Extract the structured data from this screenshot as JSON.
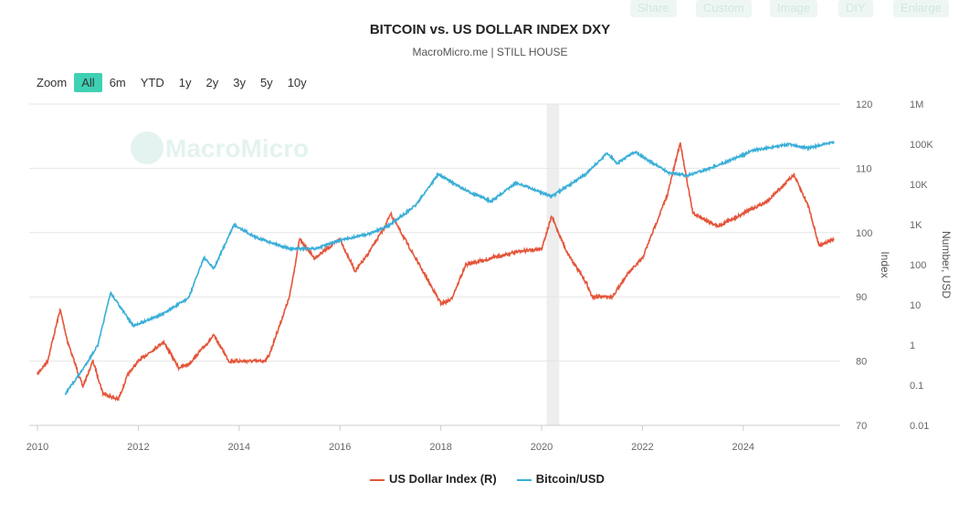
{
  "toolbar": [
    "Share",
    "Custom",
    "Image",
    "DIY",
    "Enlarge"
  ],
  "zoom": {
    "label": "Zoom",
    "options": [
      "All",
      "6m",
      "YTD",
      "1y",
      "2y",
      "3y",
      "5y",
      "10y"
    ],
    "selected": "All"
  },
  "watermark": "MacroMicro",
  "chart_data": {
    "type": "line",
    "title": "BITCOIN vs. US DOLLAR INDEX DXY",
    "subtitle": "MacroMicro.me | STILL HOUSE",
    "x_ticks": [
      "2010",
      "2012",
      "2014",
      "2016",
      "2018",
      "2020",
      "2022",
      "2024"
    ],
    "xlim": [
      2009.85,
      2025.85
    ],
    "y_left": {
      "label": "Index",
      "ticks": [
        "70",
        "80",
        "90",
        "100",
        "110",
        "120"
      ],
      "range": [
        70,
        120
      ]
    },
    "y_right": {
      "label": "Number, USD",
      "scale": "log",
      "ticks": [
        "0.01",
        "0.1",
        "1",
        "10",
        "100",
        "1K",
        "10K",
        "100K",
        "1M"
      ],
      "range": [
        0.01,
        1000000
      ]
    },
    "shaded_region": [
      2020.1,
      2020.35
    ],
    "legend": "bottom-center",
    "series": [
      {
        "name": "US Dollar Index (R)",
        "color": "#e4553a",
        "axis": "left",
        "points": [
          [
            2010.0,
            78
          ],
          [
            2010.2,
            80
          ],
          [
            2010.45,
            88
          ],
          [
            2010.6,
            83
          ],
          [
            2010.9,
            76
          ],
          [
            2011.1,
            80
          ],
          [
            2011.3,
            75
          ],
          [
            2011.6,
            74
          ],
          [
            2011.8,
            78
          ],
          [
            2012.0,
            80
          ],
          [
            2012.5,
            83
          ],
          [
            2012.8,
            79
          ],
          [
            2013.0,
            79.5
          ],
          [
            2013.5,
            84
          ],
          [
            2013.8,
            80
          ],
          [
            2014.0,
            80
          ],
          [
            2014.5,
            80
          ],
          [
            2014.6,
            81
          ],
          [
            2015.0,
            90
          ],
          [
            2015.2,
            99
          ],
          [
            2015.5,
            96
          ],
          [
            2016.0,
            99
          ],
          [
            2016.3,
            94
          ],
          [
            2016.5,
            96
          ],
          [
            2016.9,
            101
          ],
          [
            2017.0,
            103
          ],
          [
            2017.5,
            96
          ],
          [
            2018.0,
            89
          ],
          [
            2018.2,
            89.5
          ],
          [
            2018.5,
            95
          ],
          [
            2019.0,
            96
          ],
          [
            2019.5,
            97
          ],
          [
            2020.0,
            97.5
          ],
          [
            2020.2,
            102.5
          ],
          [
            2020.5,
            97
          ],
          [
            2020.9,
            92
          ],
          [
            2021.0,
            90
          ],
          [
            2021.4,
            90
          ],
          [
            2021.7,
            93.5
          ],
          [
            2022.0,
            96
          ],
          [
            2022.5,
            106
          ],
          [
            2022.75,
            114
          ],
          [
            2023.0,
            103
          ],
          [
            2023.5,
            101
          ],
          [
            2024.0,
            103
          ],
          [
            2024.5,
            105
          ],
          [
            2025.0,
            109
          ],
          [
            2025.3,
            104
          ],
          [
            2025.5,
            98
          ],
          [
            2025.8,
            99
          ]
        ]
      },
      {
        "name": "Bitcoin/USD",
        "color": "#3aaed8",
        "axis": "right",
        "points": [
          [
            2010.55,
            0.06
          ],
          [
            2010.9,
            0.25
          ],
          [
            2011.2,
            1
          ],
          [
            2011.45,
            20
          ],
          [
            2011.9,
            3
          ],
          [
            2012.5,
            6
          ],
          [
            2013.0,
            15
          ],
          [
            2013.3,
            150
          ],
          [
            2013.5,
            80
          ],
          [
            2013.9,
            1000
          ],
          [
            2014.3,
            500
          ],
          [
            2015.0,
            250
          ],
          [
            2015.5,
            250
          ],
          [
            2016.0,
            400
          ],
          [
            2016.6,
            600
          ],
          [
            2017.0,
            1000
          ],
          [
            2017.5,
            3000
          ],
          [
            2017.95,
            18000
          ],
          [
            2018.5,
            7000
          ],
          [
            2019.0,
            3800
          ],
          [
            2019.5,
            11000
          ],
          [
            2020.2,
            5000
          ],
          [
            2020.9,
            19000
          ],
          [
            2021.3,
            60000
          ],
          [
            2021.5,
            33000
          ],
          [
            2021.85,
            65000
          ],
          [
            2022.5,
            20000
          ],
          [
            2022.9,
            16500
          ],
          [
            2023.5,
            30000
          ],
          [
            2024.2,
            70000
          ],
          [
            2024.9,
            100000
          ],
          [
            2025.3,
            80000
          ],
          [
            2025.8,
            115000
          ]
        ]
      }
    ]
  }
}
